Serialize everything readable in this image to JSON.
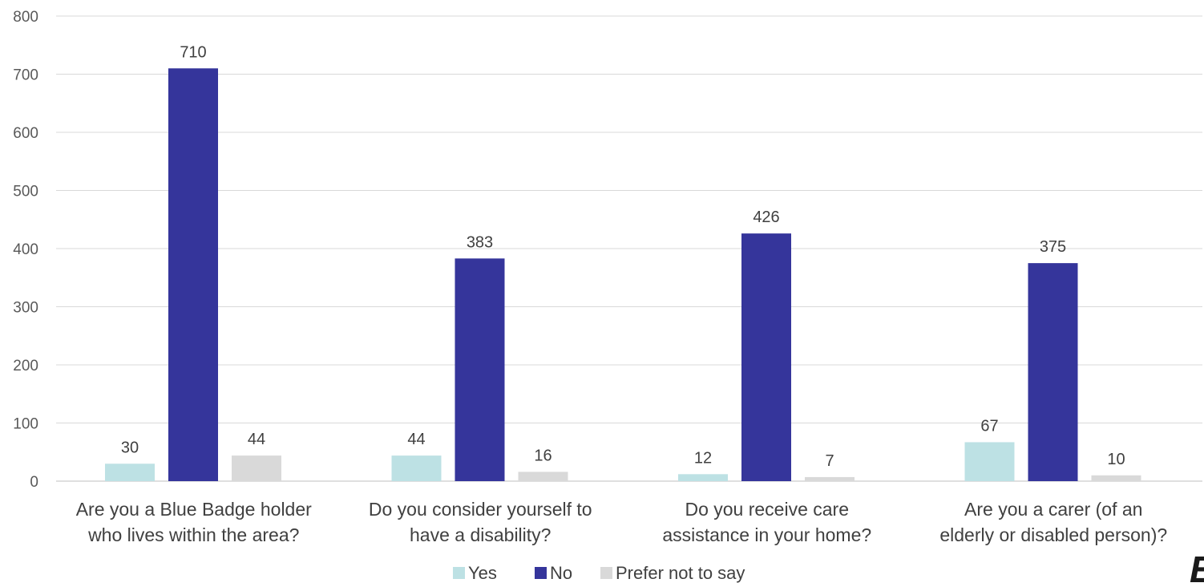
{
  "chart_data": {
    "type": "bar",
    "categories": [
      [
        "Are you a Blue Badge holder",
        "who lives within the area?"
      ],
      [
        "Do you consider yourself to",
        "have a disability?"
      ],
      [
        "Do you receive care",
        "assistance in your home?"
      ],
      [
        "Are you a carer (of an",
        "elderly or disabled person)?"
      ]
    ],
    "series": [
      {
        "name": "Yes",
        "color": "#bde1e4",
        "values": [
          30,
          44,
          12,
          67
        ]
      },
      {
        "name": "No",
        "color": "#35359b",
        "values": [
          710,
          383,
          426,
          375
        ]
      },
      {
        "name": "Prefer not to say",
        "color": "#d9d9d9",
        "values": [
          44,
          16,
          7,
          10
        ]
      }
    ],
    "ylim": [
      0,
      800
    ],
    "yticks": [
      0,
      100,
      200,
      300,
      400,
      500,
      600,
      700,
      800
    ],
    "grid": true,
    "legend_position": "bottom",
    "title": "",
    "xlabel": "",
    "ylabel": ""
  },
  "logo": {
    "text": "ENFIEL",
    "color": "#1a1a1a"
  }
}
